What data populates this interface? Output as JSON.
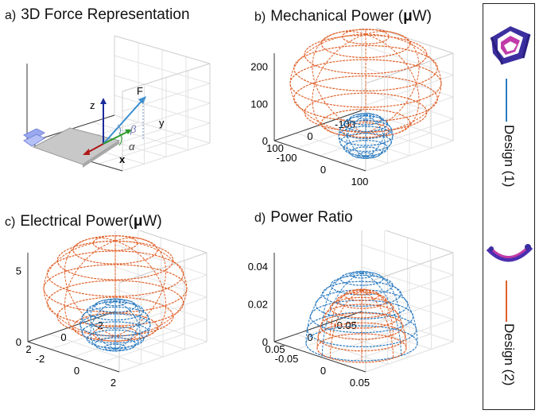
{
  "colors": {
    "design1": "#2b7bc0",
    "design2": "#e0622b",
    "axis": "#333333",
    "grid": "#e3e3e3",
    "force_vec": "#3a8fd0",
    "z_axis": "#1a2b9a",
    "x_axis": "#b01818",
    "alpha_vec": "#2a9a2a",
    "plate": "#c8c8c8",
    "clamp": "#9aa8f0"
  },
  "legend": {
    "design1_label": "Design (1)",
    "design2_label": "Design (2)",
    "design1_icon": "purple-frame-icon",
    "design2_icon": "purple-arc-icon"
  },
  "panels": {
    "a": {
      "label": "a)",
      "title": "3D Force Representation",
      "vector_labels": {
        "z": "z",
        "y": "y",
        "x": "x",
        "force": "F",
        "alpha": "α",
        "beta": "β"
      }
    },
    "b": {
      "label": "b)",
      "title": "Mechanical Power (",
      "unit_mu": "μ",
      "unit_rest": "W)"
    },
    "c": {
      "label": "c)",
      "title": "Electrical Power(",
      "unit_mu": "μ",
      "unit_rest": "W)"
    },
    "d": {
      "label": "d)",
      "title": "Power Ratio"
    }
  },
  "chart_data": [
    {
      "panel": "b",
      "type": "surface3d",
      "title": "Mechanical Power (μW)",
      "zticks": [
        "0",
        "100",
        "200"
      ],
      "xticks": [
        "-100",
        "0",
        "100"
      ],
      "yticks": [
        "100",
        "0",
        "-100"
      ],
      "series": [
        {
          "name": "Design (1)",
          "shape": "ellipsoid",
          "center_z": 20,
          "radius_xy": 50,
          "radius_z": 40
        },
        {
          "name": "Design (2)",
          "shape": "ellipsoid",
          "center_z": 95,
          "radius_xy": 130,
          "radius_z": 110
        }
      ]
    },
    {
      "panel": "c",
      "type": "surface3d",
      "title": "Electrical Power(μW)",
      "zticks": [
        "0",
        "5"
      ],
      "xticks": [
        "-2",
        "0",
        "2"
      ],
      "yticks": [
        "2",
        "0",
        "-2"
      ],
      "series": [
        {
          "name": "Design (1)",
          "shape": "ellipsoid",
          "center_z": 1.5,
          "radius_xy": 1.1,
          "radius_z": 1.5
        },
        {
          "name": "Design (2)",
          "shape": "ellipsoid",
          "center_z": 3.5,
          "radius_xy": 2.6,
          "radius_z": 3.3
        }
      ]
    },
    {
      "panel": "d",
      "type": "surface3d",
      "title": "Power Ratio",
      "zticks": [
        "0",
        "0.02",
        "0.04"
      ],
      "xticks": [
        "-0.05",
        "0",
        "0.05"
      ],
      "yticks": [
        "0.05",
        "0",
        "-0.05"
      ],
      "series": [
        {
          "name": "Design (1)",
          "shape": "dome",
          "center_z": 0.0,
          "radius_xy": 0.055,
          "radius_z": 0.037
        },
        {
          "name": "Design (2)",
          "shape": "dome",
          "center_z": 0.0,
          "radius_xy": 0.045,
          "radius_z": 0.029
        }
      ]
    }
  ]
}
